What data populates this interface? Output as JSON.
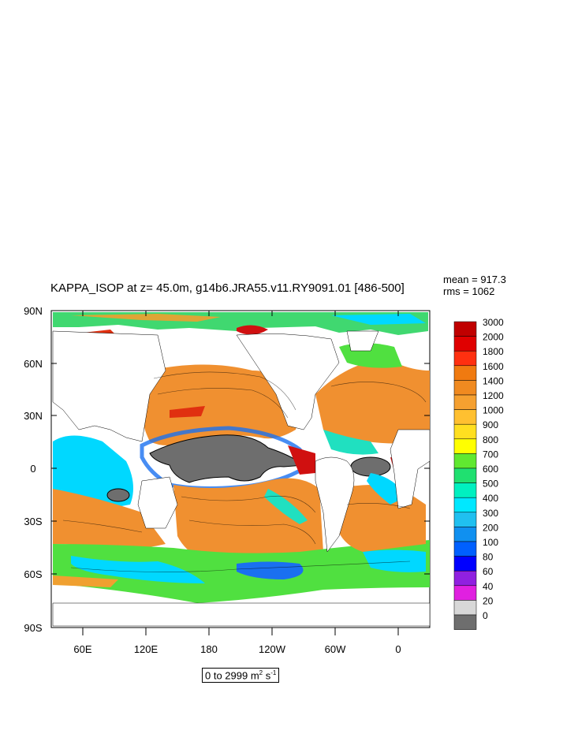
{
  "title": "KAPPA_ISOP at z=  45.0m, g14b6.JRA55.v11.RY9091.01 [486-500]",
  "stats": {
    "mean": "mean = 917.3",
    "rms": "rms = 1062"
  },
  "range_label": {
    "prefix": "0 to 2999 m",
    "sup1": "2",
    "mid": " s",
    "sup2": "-1"
  },
  "y_ticks": [
    "90N",
    "60N",
    "30N",
    "0",
    "30S",
    "60S",
    "90S"
  ],
  "x_ticks": [
    "60E",
    "120E",
    "180",
    "120W",
    "60W",
    "0"
  ],
  "colorbar": {
    "labels": [
      "3000",
      "2000",
      "1800",
      "1600",
      "1400",
      "1200",
      "1000",
      "900",
      "800",
      "700",
      "600",
      "500",
      "400",
      "300",
      "200",
      "100",
      "80",
      "60",
      "40",
      "20",
      "0"
    ],
    "colors": [
      "#c00000",
      "#e00000",
      "#ff3010",
      "#f07a10",
      "#f08a20",
      "#f5a030",
      "#ffc030",
      "#ffdf20",
      "#ffff00",
      "#60e830",
      "#20e070",
      "#00f0c0",
      "#00e8ff",
      "#20c0f0",
      "#1090f0",
      "#0060ff",
      "#0000ff",
      "#9020e0",
      "#e020e0",
      "#d8d8d8",
      "#6e6e6e"
    ]
  },
  "map_colors": {
    "ocean_warm": "#f09030",
    "ocean_mid": "#f5a840",
    "cold_low": "#707070",
    "teal": "#20e0c0",
    "cyan": "#00d8ff",
    "green": "#50e040",
    "blue": "#1a70f0",
    "red": "#d01010"
  }
}
